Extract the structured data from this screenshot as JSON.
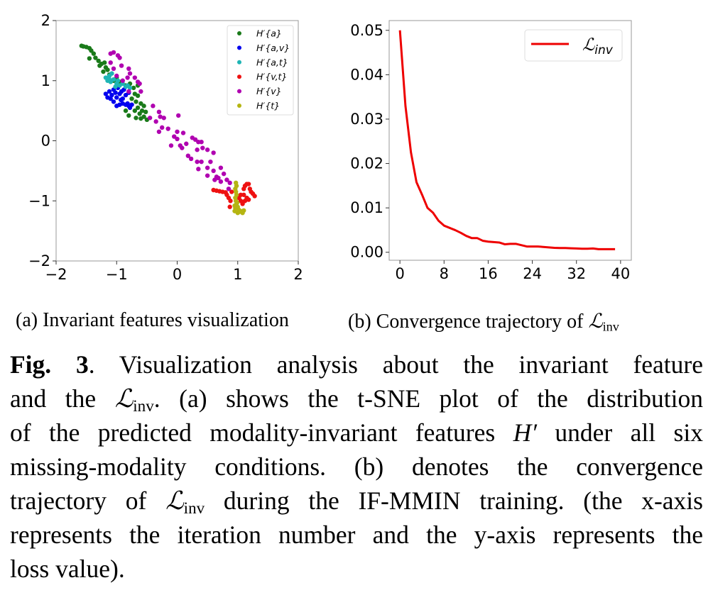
{
  "chart_data": [
    {
      "type": "scatter",
      "panel": "a",
      "xlim": [
        -2,
        2
      ],
      "ylim": [
        -2,
        2
      ],
      "xticks": [
        "−2",
        "−1",
        "0",
        "1",
        "2"
      ],
      "xtick_values": [
        -2,
        -1,
        0,
        1,
        2
      ],
      "yticks": [
        "−2",
        "−1",
        "0",
        "1",
        "2"
      ],
      "ytick_values": [
        -2,
        -1,
        0,
        1,
        2
      ],
      "legend_position": "top-right",
      "series": [
        {
          "name": "H′{a}",
          "color": "#1a7a1a",
          "points": [
            [
              -1.58,
              1.58
            ],
            [
              -1.55,
              1.57
            ],
            [
              -1.5,
              1.56
            ],
            [
              -1.45,
              1.54
            ],
            [
              -1.42,
              1.5
            ],
            [
              -1.38,
              1.45
            ],
            [
              -1.45,
              1.37
            ],
            [
              -1.35,
              1.38
            ],
            [
              -1.3,
              1.33
            ],
            [
              -1.25,
              1.28
            ],
            [
              -1.2,
              1.3
            ],
            [
              -1.28,
              1.25
            ],
            [
              -1.18,
              1.22
            ],
            [
              -1.22,
              1.15
            ],
            [
              -1.15,
              1.18
            ],
            [
              -1.12,
              1.1
            ],
            [
              -1.05,
              1.0
            ],
            [
              -1.0,
              1.05
            ],
            [
              -0.95,
              0.98
            ],
            [
              -0.85,
              0.92
            ],
            [
              -0.78,
              0.95
            ],
            [
              -0.72,
              0.88
            ],
            [
              -0.7,
              0.78
            ],
            [
              -0.65,
              0.75
            ],
            [
              -0.75,
              0.7
            ],
            [
              -0.68,
              0.65
            ],
            [
              -0.6,
              0.62
            ],
            [
              -0.55,
              0.58
            ],
            [
              -0.65,
              0.55
            ],
            [
              -0.58,
              0.5
            ],
            [
              -0.52,
              0.48
            ],
            [
              -0.62,
              0.45
            ],
            [
              -0.7,
              0.5
            ],
            [
              -0.55,
              0.4
            ],
            [
              -0.5,
              0.35
            ],
            [
              -0.6,
              0.37
            ],
            [
              -0.68,
              0.38
            ],
            [
              -0.8,
              0.42
            ],
            [
              -0.85,
              0.5
            ],
            [
              -0.65,
              0.92
            ]
          ]
        },
        {
          "name": "H′{a,v}",
          "color": "#0000ee",
          "points": [
            [
              -1.18,
              0.78
            ],
            [
              -1.15,
              0.72
            ],
            [
              -1.12,
              0.82
            ],
            [
              -1.08,
              0.76
            ],
            [
              -1.05,
              0.85
            ],
            [
              -1.02,
              0.8
            ],
            [
              -1.0,
              0.72
            ],
            [
              -0.98,
              0.88
            ],
            [
              -0.95,
              0.78
            ],
            [
              -0.92,
              0.82
            ],
            [
              -0.9,
              0.7
            ],
            [
              -0.88,
              0.85
            ],
            [
              -0.85,
              0.76
            ],
            [
              -0.82,
              0.62
            ],
            [
              -0.8,
              0.58
            ],
            [
              -0.78,
              0.55
            ],
            [
              -0.85,
              0.6
            ],
            [
              -0.95,
              0.6
            ],
            [
              -1.0,
              0.58
            ],
            [
              -1.05,
              0.65
            ],
            [
              -0.9,
              0.62
            ],
            [
              -0.93,
              0.68
            ],
            [
              -1.1,
              0.7
            ],
            [
              -0.8,
              0.8
            ],
            [
              -0.75,
              0.6
            ]
          ]
        },
        {
          "name": "H′{a,t}",
          "color": "#1fb5b5",
          "points": [
            [
              -1.18,
              1.05
            ],
            [
              -1.15,
              1.0
            ],
            [
              -1.12,
              1.08
            ],
            [
              -1.1,
              0.98
            ],
            [
              -1.08,
              1.12
            ],
            [
              -1.05,
              1.02
            ],
            [
              -1.0,
              0.95
            ],
            [
              -0.98,
              1.0
            ],
            [
              -0.95,
              0.92
            ],
            [
              -0.9,
              0.95
            ],
            [
              -0.85,
              0.9
            ],
            [
              -0.82,
              0.92
            ],
            [
              -0.78,
              0.88
            ],
            [
              -1.02,
              0.9
            ],
            [
              -1.12,
              1.02
            ]
          ]
        },
        {
          "name": "H′{v,t}",
          "color": "#ee1111",
          "points": [
            [
              0.6,
              -0.82
            ],
            [
              0.65,
              -0.83
            ],
            [
              0.7,
              -0.84
            ],
            [
              0.75,
              -0.85
            ],
            [
              0.8,
              -0.86
            ],
            [
              0.82,
              -0.9
            ],
            [
              0.85,
              -0.95
            ],
            [
              0.88,
              -1.0
            ],
            [
              0.9,
              -0.85
            ],
            [
              0.87,
              -1.1
            ],
            [
              1.05,
              -0.9
            ],
            [
              1.1,
              -0.8
            ],
            [
              1.12,
              -0.75
            ],
            [
              1.15,
              -0.72
            ],
            [
              1.18,
              -0.72
            ],
            [
              1.2,
              -0.8
            ],
            [
              1.22,
              -0.85
            ],
            [
              1.25,
              -0.88
            ],
            [
              1.28,
              -0.92
            ],
            [
              1.15,
              -0.95
            ],
            [
              1.12,
              -1.0
            ],
            [
              1.08,
              -1.05
            ],
            [
              1.1,
              -0.9
            ],
            [
              1.18,
              -0.98
            ],
            [
              1.05,
              -1.0
            ],
            [
              1.02,
              -0.95
            ]
          ]
        },
        {
          "name": "H′{v}",
          "color": "#b000b0",
          "points": [
            [
              -1.1,
              1.45
            ],
            [
              -1.05,
              1.47
            ],
            [
              -0.98,
              1.42
            ],
            [
              -0.95,
              1.38
            ],
            [
              -0.92,
              1.25
            ],
            [
              -1.1,
              1.3
            ],
            [
              -1.05,
              1.2
            ],
            [
              -0.8,
              1.2
            ],
            [
              -0.78,
              1.12
            ],
            [
              -0.82,
              1.05
            ],
            [
              -0.7,
              1.05
            ],
            [
              -0.65,
              0.98
            ],
            [
              -0.62,
              0.95
            ],
            [
              -0.6,
              0.82
            ],
            [
              -0.8,
              0.82
            ],
            [
              -1.0,
              1.08
            ],
            [
              -0.9,
              1.0
            ],
            [
              -0.45,
              0.38
            ],
            [
              -0.4,
              0.58
            ],
            [
              -0.3,
              0.48
            ],
            [
              -0.28,
              0.4
            ],
            [
              -0.22,
              0.38
            ],
            [
              -0.35,
              0.32
            ],
            [
              0.02,
              0.42
            ],
            [
              -0.25,
              0.22
            ],
            [
              -0.3,
              0.15
            ],
            [
              -0.15,
              0.2
            ],
            [
              -0.05,
              0.07
            ],
            [
              0.0,
              0.15
            ],
            [
              0.1,
              0.13
            ],
            [
              0.0,
              0.03
            ],
            [
              -0.1,
              -0.08
            ],
            [
              0.05,
              -0.08
            ],
            [
              0.08,
              -0.12
            ],
            [
              0.15,
              -0.05
            ],
            [
              0.25,
              0.05
            ],
            [
              0.3,
              0.02
            ],
            [
              0.35,
              -0.02
            ],
            [
              0.4,
              -0.02
            ],
            [
              0.18,
              -0.25
            ],
            [
              0.23,
              -0.3
            ],
            [
              0.33,
              -0.15
            ],
            [
              0.42,
              -0.12
            ],
            [
              0.5,
              -0.15
            ],
            [
              0.6,
              -0.2
            ],
            [
              0.33,
              -0.35
            ],
            [
              0.4,
              -0.35
            ],
            [
              0.35,
              -0.47
            ],
            [
              0.5,
              -0.45
            ],
            [
              0.55,
              -0.35
            ],
            [
              0.6,
              -0.5
            ],
            [
              0.65,
              -0.6
            ],
            [
              0.72,
              -0.45
            ],
            [
              0.77,
              -0.55
            ],
            [
              0.5,
              -0.58
            ],
            [
              0.62,
              -0.65
            ],
            [
              0.72,
              -0.68
            ],
            [
              0.82,
              -0.65
            ],
            [
              0.87,
              -0.7
            ],
            [
              0.85,
              -0.8
            ],
            [
              0.68,
              -0.62
            ]
          ]
        },
        {
          "name": "H′{t}",
          "color": "#b5b512",
          "points": [
            [
              0.97,
              -0.7
            ],
            [
              0.98,
              -0.75
            ],
            [
              0.96,
              -0.8
            ],
            [
              0.97,
              -0.85
            ],
            [
              0.98,
              -0.9
            ],
            [
              0.96,
              -0.95
            ],
            [
              0.97,
              -1.0
            ],
            [
              0.98,
              -1.05
            ],
            [
              0.95,
              -1.08
            ],
            [
              1.0,
              -1.1
            ],
            [
              0.96,
              -1.12
            ],
            [
              1.02,
              -1.15
            ],
            [
              1.05,
              -1.17
            ],
            [
              0.95,
              -1.17
            ],
            [
              1.0,
              -1.2
            ],
            [
              1.1,
              -1.16
            ],
            [
              1.08,
              -1.2
            ],
            [
              1.03,
              -1.18
            ],
            [
              0.99,
              -1.03
            ]
          ]
        }
      ]
    },
    {
      "type": "line",
      "panel": "b",
      "xlim": [
        -1.95,
        41.95
      ],
      "ylim": [
        -0.0018,
        0.0522
      ],
      "xticks": [
        "0",
        "8",
        "16",
        "24",
        "32",
        "40"
      ],
      "xtick_values": [
        0,
        8,
        16,
        24,
        32,
        40
      ],
      "yticks": [
        "0.00",
        "0.01",
        "0.02",
        "0.03",
        "0.04",
        "0.05"
      ],
      "ytick_values": [
        0,
        0.01,
        0.02,
        0.03,
        0.04,
        0.05
      ],
      "legend_position": "top-right",
      "series": [
        {
          "name": "ℒ",
          "name_sub": "inv",
          "color": "#ee0000",
          "x": [
            0,
            1,
            2,
            3,
            4,
            5,
            6,
            7,
            8,
            9,
            10,
            11,
            12,
            13,
            14,
            15,
            16,
            17,
            18,
            19,
            20,
            21,
            22,
            23,
            24,
            25,
            26,
            27,
            28,
            29,
            30,
            31,
            32,
            33,
            34,
            35,
            36,
            37,
            38,
            39
          ],
          "y": [
            0.05,
            0.033,
            0.0225,
            0.0158,
            0.013,
            0.01,
            0.0089,
            0.0071,
            0.006,
            0.0055,
            0.005,
            0.0044,
            0.0037,
            0.0032,
            0.0032,
            0.0026,
            0.0024,
            0.0023,
            0.0022,
            0.0018,
            0.0019,
            0.0019,
            0.0016,
            0.0013,
            0.0013,
            0.0013,
            0.0012,
            0.0011,
            0.001,
            0.00095,
            0.00095,
            0.0009,
            0.00085,
            0.0008,
            0.0008,
            0.00085,
            0.0007,
            0.0007,
            0.0007,
            0.0007
          ]
        }
      ]
    }
  ],
  "subcaptions": {
    "a": "(a)  Invariant features visualization",
    "b_prefix": "(b)  Convergence trajectory of ",
    "b_symbol": "ℒ",
    "b_sub": "inv"
  },
  "caption": {
    "label": "Fig. 3",
    "l1": ".   Visualization analysis about the invariant feature",
    "l2a": "and the ",
    "sym": "ℒ",
    "sub": "inv",
    "l2b": ".  (a) shows the t-SNE plot of the distribution",
    "l3a": "of the predicted modality-invariant features ",
    "h": "H′",
    "l3b": " under all six",
    "l4": "missing-modality conditions.  (b) denotes the convergence",
    "l5a": "trajectory of ",
    "l5b": " during the IF-MMIN training.  (the x-axis",
    "l6": "represents the iteration number and the y-axis represents the",
    "l7": "loss value)."
  }
}
